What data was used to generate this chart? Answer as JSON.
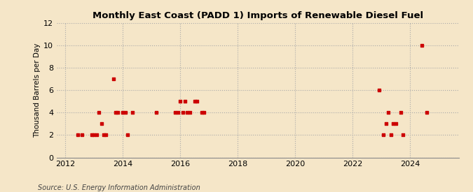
{
  "title": "Monthly East Coast (PADD 1) Imports of Renewable Diesel Fuel",
  "ylabel": "Thousand Barrels per Day",
  "source": "Source: U.S. Energy Information Administration",
  "background_color": "#f5e6c8",
  "point_color": "#cc0000",
  "xlim": [
    2011.7,
    2025.7
  ],
  "ylim": [
    0,
    12
  ],
  "yticks": [
    0,
    2,
    4,
    6,
    8,
    10,
    12
  ],
  "xticks": [
    2012,
    2014,
    2016,
    2018,
    2020,
    2022,
    2024
  ],
  "data_points": [
    [
      2012.42,
      2
    ],
    [
      2012.58,
      2
    ],
    [
      2012.92,
      2
    ],
    [
      2013.0,
      2
    ],
    [
      2013.08,
      2
    ],
    [
      2013.17,
      4
    ],
    [
      2013.25,
      3
    ],
    [
      2013.33,
      2
    ],
    [
      2013.42,
      2
    ],
    [
      2013.67,
      7
    ],
    [
      2013.75,
      4
    ],
    [
      2013.83,
      4
    ],
    [
      2014.0,
      4
    ],
    [
      2014.08,
      4
    ],
    [
      2014.17,
      2
    ],
    [
      2014.33,
      4
    ],
    [
      2015.17,
      4
    ],
    [
      2015.83,
      4
    ],
    [
      2015.92,
      4
    ],
    [
      2016.0,
      5
    ],
    [
      2016.08,
      4
    ],
    [
      2016.17,
      5
    ],
    [
      2016.25,
      4
    ],
    [
      2016.33,
      4
    ],
    [
      2016.5,
      5
    ],
    [
      2016.58,
      5
    ],
    [
      2016.75,
      4
    ],
    [
      2016.83,
      4
    ],
    [
      2022.92,
      6
    ],
    [
      2023.08,
      2
    ],
    [
      2023.17,
      3
    ],
    [
      2023.25,
      4
    ],
    [
      2023.33,
      2
    ],
    [
      2023.42,
      3
    ],
    [
      2023.5,
      3
    ],
    [
      2023.67,
      4
    ],
    [
      2023.75,
      2
    ],
    [
      2024.42,
      10
    ],
    [
      2024.58,
      4
    ]
  ]
}
